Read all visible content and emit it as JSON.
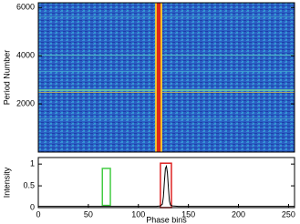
{
  "chart_data": [
    {
      "type": "heatmap",
      "y_label": "Period Number",
      "xlim": [
        0,
        256
      ],
      "ylim": [
        0,
        6200
      ],
      "yticks": [
        2000,
        4000,
        6000
      ]
    },
    {
      "type": "line",
      "x_label": "Phase bins",
      "y_label": "Intensity",
      "x": [
        0,
        50,
        100,
        118,
        122,
        124,
        125,
        126,
        127,
        128,
        129,
        130,
        131,
        132,
        134,
        140,
        150,
        200,
        256
      ],
      "values": [
        0.03,
        0.03,
        0.03,
        0.03,
        0.04,
        0.08,
        0.25,
        0.6,
        0.9,
        0.95,
        0.8,
        0.45,
        0.15,
        0.06,
        0.04,
        0.03,
        0.03,
        0.03,
        0.03
      ],
      "color": "#000000",
      "xlim": [
        0,
        256
      ],
      "ylim": [
        0,
        1.15
      ],
      "xticks": [
        0,
        50,
        100,
        150,
        200,
        250
      ],
      "yticks": [
        0,
        0.5,
        1
      ],
      "regions": [
        {
          "xlim": [
            64,
            72
          ],
          "ylim": [
            0.05,
            0.9
          ],
          "color": "#44cc44"
        },
        {
          "xlim": [
            122,
            133
          ],
          "ylim": [
            0.0,
            1.02
          ],
          "color": "#dd2222"
        }
      ]
    }
  ]
}
